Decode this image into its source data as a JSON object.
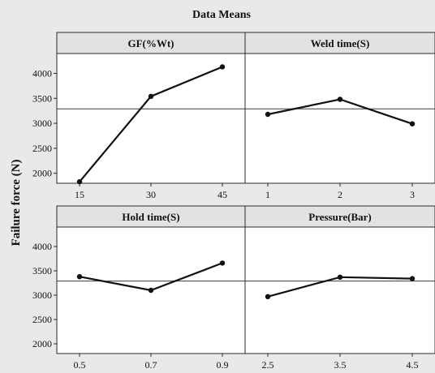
{
  "chart_data": {
    "type": "line",
    "title": "Data Means",
    "ylabel": "Failure force (N)",
    "ylim": [
      1800,
      4300
    ],
    "yticks": [
      2000,
      2500,
      3000,
      3500,
      4000
    ],
    "reference_line": 3290,
    "panels": [
      {
        "title": "GF(%Wt)",
        "x": [
          "15",
          "30",
          "45"
        ],
        "values": [
          1830,
          3540,
          4130
        ]
      },
      {
        "title": "Weld time(S)",
        "x": [
          "1",
          "2",
          "3"
        ],
        "values": [
          3180,
          3480,
          2990
        ]
      },
      {
        "title": "Hold time(S)",
        "x": [
          "0.5",
          "0.7",
          "0.9"
        ],
        "values": [
          3380,
          3100,
          3660
        ]
      },
      {
        "title": "Pressure(Bar)",
        "x": [
          "2.5",
          "3.5",
          "4.5"
        ],
        "values": [
          2970,
          3370,
          3340
        ]
      }
    ]
  }
}
